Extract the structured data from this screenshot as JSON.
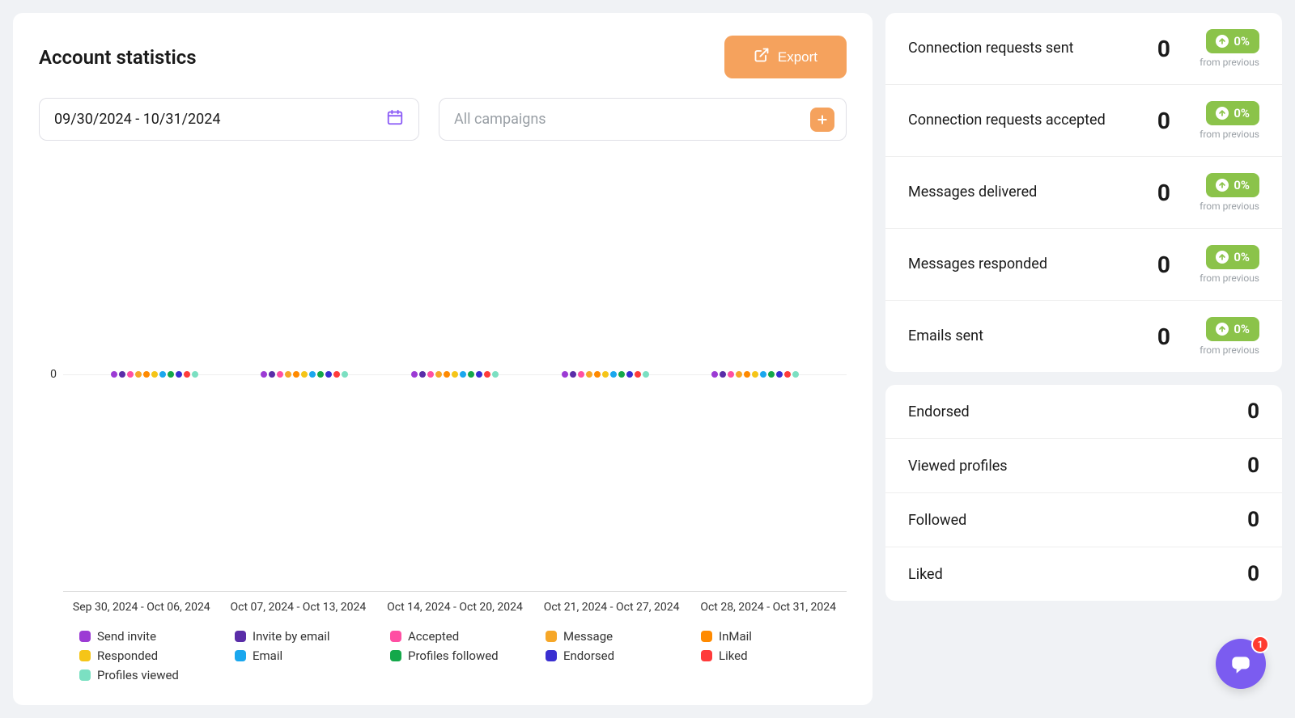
{
  "header": {
    "title": "Account statistics",
    "export_label": "Export"
  },
  "controls": {
    "date_range": "09/30/2024 - 10/31/2024",
    "campaigns_placeholder": "All campaigns"
  },
  "chart": {
    "type": "grouped-dot",
    "y_tick": "0",
    "x_labels": [
      "Sep 30, 2024 - Oct 06, 2024",
      "Oct 07, 2024 - Oct 13, 2024",
      "Oct 14, 2024 - Oct 20, 2024",
      "Oct 21, 2024 - Oct 27, 2024",
      "Oct 28, 2024 - Oct 31, 2024"
    ],
    "series": [
      {
        "label": "Send invite",
        "color": "#9c3bd4"
      },
      {
        "label": "Invite by email",
        "color": "#5a2da8"
      },
      {
        "label": "Accepted",
        "color": "#ff4fa3"
      },
      {
        "label": "Message",
        "color": "#f6a728"
      },
      {
        "label": "InMail",
        "color": "#ff8a00"
      },
      {
        "label": "Responded",
        "color": "#f5c518"
      },
      {
        "label": "Email",
        "color": "#1aa7ee"
      },
      {
        "label": "Profiles followed",
        "color": "#14a84a"
      },
      {
        "label": "Endorsed",
        "color": "#3a2fd1"
      },
      {
        "label": "Liked",
        "color": "#ff3b3b"
      },
      {
        "label": "Profiles viewed",
        "color": "#7be0c2"
      }
    ],
    "dot_colors_per_group": [
      "#9c3bd4",
      "#5a2da8",
      "#ff4fa3",
      "#f6a728",
      "#ff8a00",
      "#f5c518",
      "#1aa7ee",
      "#14a84a",
      "#3a2fd1",
      "#ff3b3b",
      "#7be0c2"
    ],
    "values_all_zero": true
  },
  "metrics_top": [
    {
      "label": "Connection requests sent",
      "value": "0",
      "pct": "0%",
      "from": "from previous"
    },
    {
      "label": "Connection requests accepted",
      "value": "0",
      "pct": "0%",
      "from": "from previous"
    },
    {
      "label": "Messages delivered",
      "value": "0",
      "pct": "0%",
      "from": "from previous"
    },
    {
      "label": "Messages responded",
      "value": "0",
      "pct": "0%",
      "from": "from previous"
    },
    {
      "label": "Emails sent",
      "value": "0",
      "pct": "0%",
      "from": "from previous"
    }
  ],
  "metrics_bottom": [
    {
      "label": "Endorsed",
      "value": "0"
    },
    {
      "label": "Viewed profiles",
      "value": "0"
    },
    {
      "label": "Followed",
      "value": "0"
    },
    {
      "label": "Liked",
      "value": "0"
    }
  ],
  "colors": {
    "export_button": "#f5a25d",
    "plus_button": "#f5a25d",
    "badge_bg": "#8bc34a",
    "chat_fab": "#7b5cf0",
    "chat_badge": "#ff3b30"
  },
  "chat": {
    "badge_count": "1"
  }
}
